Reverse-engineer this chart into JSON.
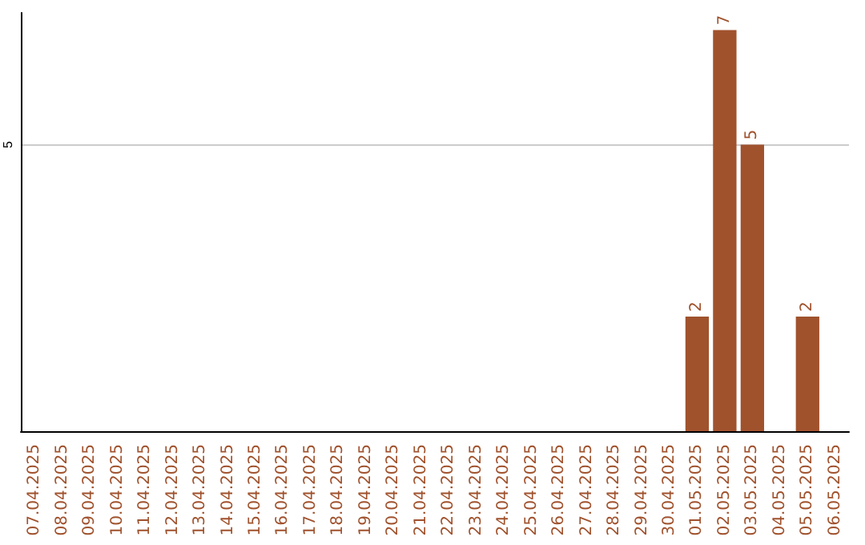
{
  "chart_data": {
    "type": "bar",
    "categories": [
      "07.04.2025",
      "08.04.2025",
      "09.04.2025",
      "10.04.2025",
      "11.04.2025",
      "12.04.2025",
      "13.04.2025",
      "14.04.2025",
      "15.04.2025",
      "16.04.2025",
      "17.04.2025",
      "18.04.2025",
      "19.04.2025",
      "20.04.2025",
      "21.04.2025",
      "22.04.2025",
      "23.04.2025",
      "24.04.2025",
      "25.04.2025",
      "26.04.2025",
      "27.04.2025",
      "28.04.2025",
      "29.04.2025",
      "30.04.2025",
      "01.05.2025",
      "02.05.2025",
      "03.05.2025",
      "04.05.2025",
      "05.05.2025",
      "06.05.2025"
    ],
    "values": [
      null,
      null,
      null,
      null,
      null,
      null,
      null,
      null,
      null,
      null,
      null,
      null,
      null,
      null,
      null,
      null,
      null,
      null,
      null,
      null,
      null,
      null,
      null,
      null,
      2,
      7,
      5,
      null,
      2,
      null
    ],
    "value_labels": [
      null,
      null,
      null,
      null,
      null,
      null,
      null,
      null,
      null,
      null,
      null,
      null,
      null,
      null,
      null,
      null,
      null,
      null,
      null,
      null,
      null,
      null,
      null,
      null,
      "2",
      "7",
      "5",
      null,
      "2",
      null
    ],
    "color": "#a0522d",
    "ylim": [
      0,
      7.3
    ],
    "yticks": [
      5
    ],
    "grid": "y"
  }
}
